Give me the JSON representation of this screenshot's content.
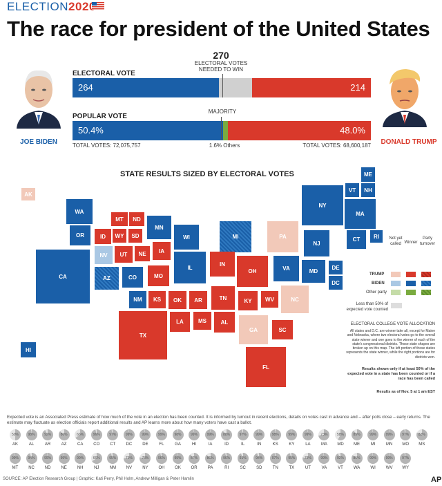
{
  "header": {
    "brand_prefix": "ELECTION",
    "brand_year": "2020",
    "title": "The race for president of the United States"
  },
  "threshold": {
    "number": "270",
    "label_line1": "ELECTORAL VOTES",
    "label_line2": "NEEDED TO WIN"
  },
  "candidates": {
    "dem": {
      "name": "JOE BIDEN",
      "color": "#1a5fa8"
    },
    "rep": {
      "name": "DONALD TRUMP",
      "color": "#d9392b"
    }
  },
  "electoral": {
    "label": "ELECTORAL VOTE",
    "dem_display": "264",
    "rep_display": "214"
  },
  "popular": {
    "label": "POPULAR VOTE",
    "majority_label": "MAJORITY",
    "dem_display": "50.4%",
    "rep_display": "48.0%",
    "others_display": "1.6% Others",
    "dem_total": "TOTAL VOTES: 72,075,757",
    "rep_total": "TOTAL VOTES: 68,600,187"
  },
  "chart_data": [
    {
      "type": "bar",
      "title": "ELECTORAL VOTE",
      "categories": [
        "Biden",
        "Undecided",
        "Trump"
      ],
      "values": [
        264,
        60,
        214
      ],
      "total": 538,
      "threshold": 270
    },
    {
      "type": "bar",
      "title": "POPULAR VOTE",
      "categories": [
        "Biden",
        "Others",
        "Trump"
      ],
      "values": [
        50.4,
        1.6,
        48.0
      ],
      "unit": "%"
    }
  ],
  "map": {
    "title": "STATE RESULTS SIZED BY ELECTORAL VOTES",
    "states": [
      {
        "abbr": "AK",
        "k": "rl"
      },
      {
        "abbr": "HI",
        "k": "d"
      },
      {
        "abbr": "ME",
        "k": "d"
      },
      {
        "abbr": "VT",
        "k": "d"
      },
      {
        "abbr": "NH",
        "k": "d"
      },
      {
        "abbr": "WA",
        "k": "d"
      },
      {
        "abbr": "NY",
        "k": "d"
      },
      {
        "abbr": "MA",
        "k": "d"
      },
      {
        "abbr": "MT",
        "k": "r"
      },
      {
        "abbr": "ND",
        "k": "r"
      },
      {
        "abbr": "MN",
        "k": "d"
      },
      {
        "abbr": "OR",
        "k": "d"
      },
      {
        "abbr": "ID",
        "k": "r"
      },
      {
        "abbr": "WY",
        "k": "r"
      },
      {
        "abbr": "SD",
        "k": "r"
      },
      {
        "abbr": "WI",
        "k": "d"
      },
      {
        "abbr": "MI",
        "k": "dh"
      },
      {
        "abbr": "PA",
        "k": "rl"
      },
      {
        "abbr": "CT",
        "k": "d"
      },
      {
        "abbr": "RI",
        "k": "d"
      },
      {
        "abbr": "NJ",
        "k": "d"
      },
      {
        "abbr": "NV",
        "k": "dl"
      },
      {
        "abbr": "UT",
        "k": "r"
      },
      {
        "abbr": "NE",
        "k": "r"
      },
      {
        "abbr": "IA",
        "k": "r"
      },
      {
        "abbr": "CA",
        "k": "d"
      },
      {
        "abbr": "AZ",
        "k": "dh"
      },
      {
        "abbr": "CO",
        "k": "d"
      },
      {
        "abbr": "MO",
        "k": "r"
      },
      {
        "abbr": "IL",
        "k": "d"
      },
      {
        "abbr": "IN",
        "k": "r"
      },
      {
        "abbr": "OH",
        "k": "r"
      },
      {
        "abbr": "VA",
        "k": "d"
      },
      {
        "abbr": "MD",
        "k": "d"
      },
      {
        "abbr": "DE",
        "k": "d"
      },
      {
        "abbr": "DC",
        "k": "d"
      },
      {
        "abbr": "NM",
        "k": "d"
      },
      {
        "abbr": "KS",
        "k": "r"
      },
      {
        "abbr": "OK",
        "k": "r"
      },
      {
        "abbr": "AR",
        "k": "r"
      },
      {
        "abbr": "TN",
        "k": "r"
      },
      {
        "abbr": "KY",
        "k": "r"
      },
      {
        "abbr": "WV",
        "k": "r"
      },
      {
        "abbr": "NC",
        "k": "rl"
      },
      {
        "abbr": "TX",
        "k": "r"
      },
      {
        "abbr": "LA",
        "k": "r"
      },
      {
        "abbr": "MS",
        "k": "r"
      },
      {
        "abbr": "AL",
        "k": "r"
      },
      {
        "abbr": "GA",
        "k": "rl"
      },
      {
        "abbr": "SC",
        "k": "r"
      },
      {
        "abbr": "FL",
        "k": "r"
      }
    ]
  },
  "legend": {
    "col_not_yet": "Not yet called",
    "col_winner": "Winner",
    "col_turnover": "Party turnover",
    "row_trump": "TRUMP",
    "row_biden": "BIDEN",
    "row_other": "Other party",
    "less_than_50": "Less than 50% of expected vote counted",
    "colors": {
      "trump": "#d9392b",
      "trump_light": "#f2c9b9",
      "biden": "#1a5fa8",
      "biden_light": "#aac8e4",
      "other": "#7aab3f",
      "other_light": "#c5dca8",
      "less": "#dddddd"
    }
  },
  "allocation": {
    "title": "ELECTORAL COLLEGE VOTE ALLOCATION",
    "body": "All states and D.C. are winner take all, except for Maine and Nebraska, where two electoral votes go to the overall state winner and one goes to the winner of each of the state's congressional districts. Those state shapes are broken up on this map. The left portion of these states represents the state winner, while the right portions are for districts won.",
    "results_note": "Results shown only if at least 50% of the expected vote in a state has been counted or if a race has been called",
    "asof": "Results as of Nov. 5 at 1 am EST"
  },
  "explain": "Expected vote is an Associated Press estimate of how much of the vote in an election has been counted. It is informed by turnout in recent elections, details on votes cast in advance and – after polls close – early returns. The estimate may fluctuate as election officials report additional results and AP learns more about how many voters have cast a ballot.",
  "expected_row1": [
    {
      "s": "AK",
      "p": "50%"
    },
    {
      "s": "AL",
      "p": "98%"
    },
    {
      "s": "AR",
      "p": "92%"
    },
    {
      "s": "AZ",
      "p": "86%"
    },
    {
      "s": "CA",
      "p": "66%"
    },
    {
      "s": "CO",
      "p": "96%"
    },
    {
      "s": "CT",
      "p": "97%"
    },
    {
      "s": "DC",
      "p": "99%"
    },
    {
      "s": "DE",
      "p": "99%"
    },
    {
      "s": "FL",
      "p": "99%"
    },
    {
      "s": "GA",
      "p": "98%"
    },
    {
      "s": "HI",
      "p": "99%"
    },
    {
      "s": "IA",
      "p": "99%"
    },
    {
      "s": "ID",
      "p": "88%"
    },
    {
      "s": "IL",
      "p": "97%"
    },
    {
      "s": "IN",
      "p": "99%"
    },
    {
      "s": "KS",
      "p": "98%"
    },
    {
      "s": "KY",
      "p": "99%"
    },
    {
      "s": "LA",
      "p": "99%"
    },
    {
      "s": "MA",
      "p": "73%"
    },
    {
      "s": "MD",
      "p": "58%"
    },
    {
      "s": "ME",
      "p": "89%"
    },
    {
      "s": "MI",
      "p": "99%"
    },
    {
      "s": "MN",
      "p": "99%"
    },
    {
      "s": "MO",
      "p": "97%"
    },
    {
      "s": "MS",
      "p": "82%"
    }
  ],
  "expected_row2": [
    {
      "s": "MT",
      "p": "99%"
    },
    {
      "s": "NC",
      "p": "94%"
    },
    {
      "s": "ND",
      "p": "99%"
    },
    {
      "s": "NE",
      "p": "99%"
    },
    {
      "s": "NH",
      "p": "99%"
    },
    {
      "s": "NJ",
      "p": "66%"
    },
    {
      "s": "NM",
      "p": "95%"
    },
    {
      "s": "NV",
      "p": "75%"
    },
    {
      "s": "NY",
      "p": "78%"
    },
    {
      "s": "OH",
      "p": "96%"
    },
    {
      "s": "OK",
      "p": "99%"
    },
    {
      "s": "OR",
      "p": "87%"
    },
    {
      "s": "PA",
      "p": "86%"
    },
    {
      "s": "RI",
      "p": "96%"
    },
    {
      "s": "SC",
      "p": "93%"
    },
    {
      "s": "SD",
      "p": "94%"
    },
    {
      "s": "TN",
      "p": "97%"
    },
    {
      "s": "TX",
      "p": "95%"
    },
    {
      "s": "UT",
      "p": "78%"
    },
    {
      "s": "VA",
      "p": "99%"
    },
    {
      "s": "VT",
      "p": "92%"
    },
    {
      "s": "WA",
      "p": "85%"
    },
    {
      "s": "WI",
      "p": "99%"
    },
    {
      "s": "WV",
      "p": "99%"
    },
    {
      "s": "WY",
      "p": "97%"
    }
  ],
  "footer": {
    "source": "SOURCE: AP Election Research Group | Graphic: Kati Perry, Phil Holm, Andrew Milligan & Peter Hamlin",
    "logo": "AP"
  }
}
